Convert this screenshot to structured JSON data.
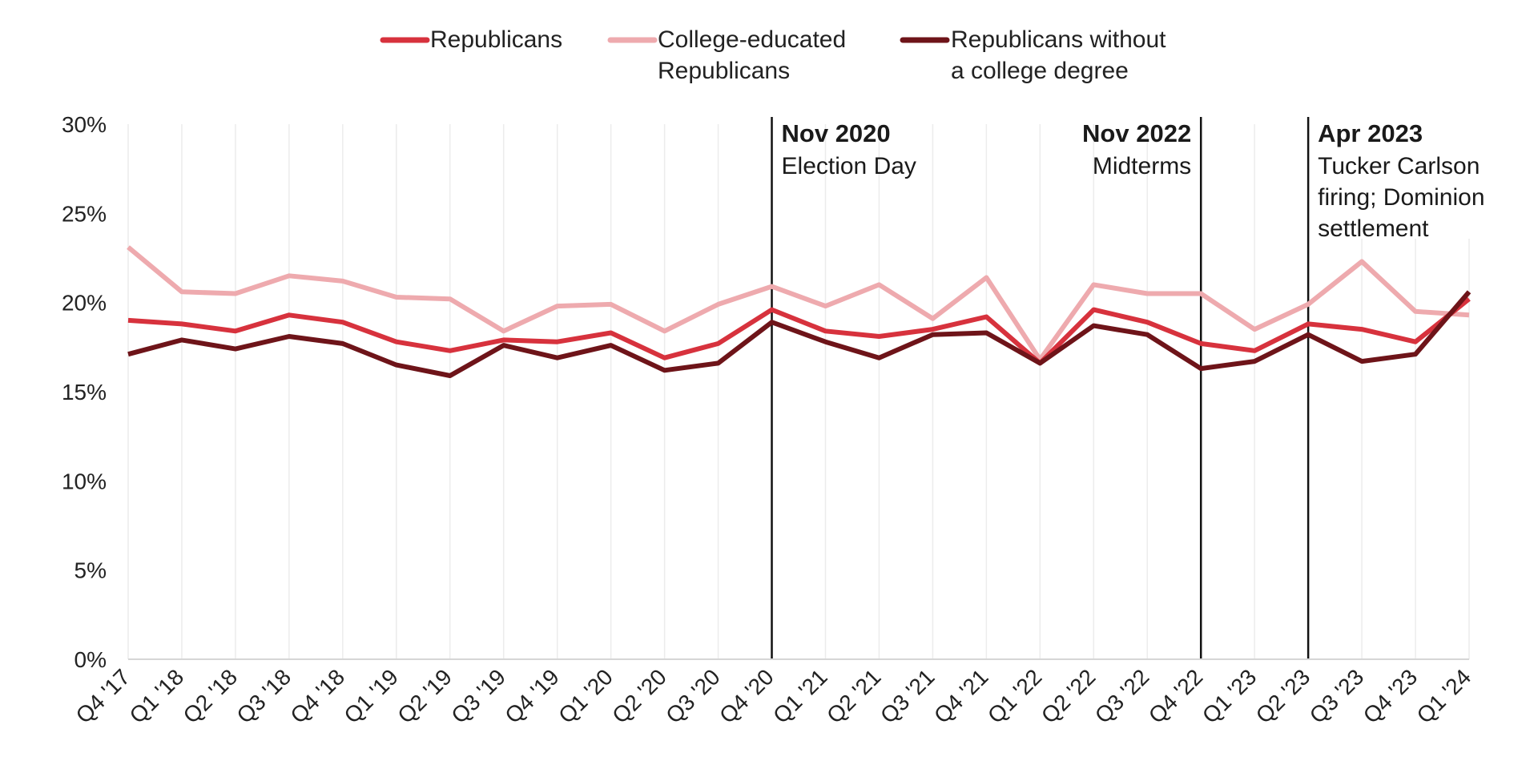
{
  "chart_data": {
    "type": "line",
    "title": "",
    "xlabel": "",
    "ylabel": "",
    "ylim": [
      0,
      30
    ],
    "y_ticks": [
      "0%",
      "5%",
      "10%",
      "15%",
      "20%",
      "25%",
      "30%"
    ],
    "grid": "vertical",
    "legend_position": "top",
    "categories": [
      "Q4 '17",
      "Q1 '18",
      "Q2 '18",
      "Q3 '18",
      "Q4 '18",
      "Q1 '19",
      "Q2 '19",
      "Q3 '19",
      "Q4 '19",
      "Q1 '20",
      "Q2 '20",
      "Q3 '20",
      "Q4 '20",
      "Q1 '21",
      "Q2 '21",
      "Q3 '21",
      "Q4 '21",
      "Q1 '22",
      "Q2 '22",
      "Q3 '22",
      "Q4 '22",
      "Q1 '23",
      "Q2 '23",
      "Q3 '23",
      "Q4 '23",
      "Q1 '24"
    ],
    "series": [
      {
        "name": "Republicans",
        "legend_lines": [
          "Republicans"
        ],
        "color": "#d7323d",
        "values": [
          19.0,
          18.8,
          18.4,
          19.3,
          18.9,
          17.8,
          17.3,
          17.9,
          17.8,
          18.3,
          16.9,
          17.7,
          19.6,
          18.4,
          18.1,
          18.5,
          19.2,
          16.6,
          19.6,
          18.9,
          17.7,
          17.3,
          18.8,
          18.5,
          17.8,
          20.2
        ]
      },
      {
        "name": "College-educated Republicans",
        "legend_lines": [
          "College-educated",
          "Republicans"
        ],
        "color": "#eeaaae",
        "values": [
          23.1,
          20.6,
          20.5,
          21.5,
          21.2,
          20.3,
          20.2,
          18.4,
          19.8,
          19.9,
          18.4,
          19.9,
          20.9,
          19.8,
          21.0,
          19.1,
          21.4,
          16.8,
          21.0,
          20.5,
          20.5,
          18.5,
          19.9,
          22.3,
          19.5,
          19.3
        ]
      },
      {
        "name": "Republicans without a college degree",
        "legend_lines": [
          "Republicans without",
          "a college degree"
        ],
        "color": "#6e1419",
        "values": [
          17.1,
          17.9,
          17.4,
          18.1,
          17.7,
          16.5,
          15.9,
          17.6,
          16.9,
          17.6,
          16.2,
          16.6,
          18.9,
          17.8,
          16.9,
          18.2,
          18.3,
          16.6,
          18.7,
          18.2,
          16.3,
          16.7,
          18.2,
          16.7,
          17.1,
          20.6
        ]
      }
    ],
    "annotations": [
      {
        "at": "Q4 '20",
        "align": "left",
        "title": "Nov 2020",
        "lines": [
          "Election Day"
        ]
      },
      {
        "at": "Q4 '22",
        "align": "right",
        "title": "Nov 2022",
        "lines": [
          "Midterms"
        ]
      },
      {
        "at": "Q2 '23",
        "align": "left",
        "title": "Apr 2023",
        "lines": [
          "Tucker Carlson",
          "firing; Dominion",
          "settlement"
        ]
      }
    ]
  }
}
